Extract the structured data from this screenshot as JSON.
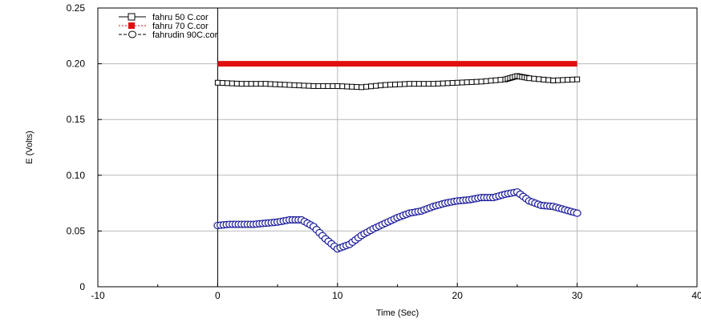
{
  "chart_data": {
    "type": "line",
    "xlabel": "Time (Sec)",
    "ylabel": "E (Volts)",
    "xlim": [
      -10,
      40
    ],
    "ylim": [
      0,
      0.25
    ],
    "x_ticks": [
      "-10",
      "0",
      "10",
      "20",
      "30",
      "40"
    ],
    "y_ticks": [
      "0",
      "0.05",
      "0.10",
      "0.15",
      "0.20",
      "0.25"
    ],
    "grid": true,
    "legend_position": "top-left",
    "series": [
      {
        "name": "fahru 50 C.cor",
        "color": "#000000",
        "marker": "open-square",
        "line": "solid",
        "x": [
          0,
          2,
          4,
          6,
          8,
          10,
          12,
          14,
          16,
          18,
          20,
          22,
          24,
          25,
          26,
          28,
          30
        ],
        "y": [
          0.183,
          0.182,
          0.182,
          0.181,
          0.18,
          0.18,
          0.179,
          0.181,
          0.182,
          0.182,
          0.183,
          0.184,
          0.186,
          0.189,
          0.187,
          0.185,
          0.186
        ]
      },
      {
        "name": "fahru 70 C.cor",
        "color": "#e01010",
        "marker": "filled-square",
        "line": "dotted",
        "x": [
          0,
          5,
          10,
          15,
          20,
          25,
          30
        ],
        "y": [
          0.2,
          0.2,
          0.2,
          0.2,
          0.2,
          0.2,
          0.2
        ]
      },
      {
        "name": "fahrudin 90C.cor",
        "color": "#1a1a9a",
        "marker": "open-circle",
        "line": "dashed",
        "x": [
          0,
          1,
          2,
          3,
          4,
          5,
          6,
          7,
          8,
          9,
          10,
          11,
          12,
          13,
          14,
          15,
          16,
          17,
          18,
          19,
          20,
          21,
          22,
          23,
          24,
          25,
          26,
          27,
          28,
          29,
          30
        ],
        "y": [
          0.055,
          0.056,
          0.056,
          0.056,
          0.057,
          0.058,
          0.06,
          0.06,
          0.054,
          0.043,
          0.034,
          0.038,
          0.046,
          0.052,
          0.057,
          0.062,
          0.066,
          0.068,
          0.072,
          0.075,
          0.077,
          0.078,
          0.08,
          0.08,
          0.083,
          0.085,
          0.077,
          0.073,
          0.072,
          0.069,
          0.066
        ]
      }
    ]
  }
}
